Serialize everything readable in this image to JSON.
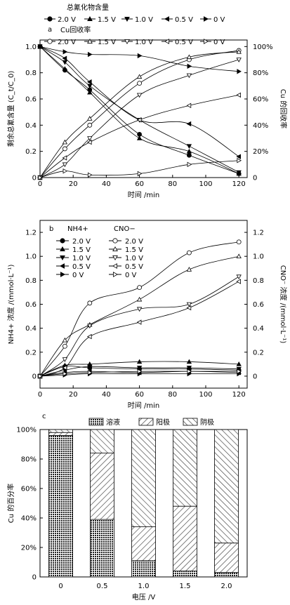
{
  "chart_data": [
    {
      "type": "line",
      "panel_label": "a",
      "legend_title_1": "总氰化物含量",
      "legend_title_2": "Cu回收率",
      "xlabel": "时间 /min",
      "ylabel": "剩余总氰含量 (C_t/C_0)",
      "ylabel_right": "Cu 的回收率",
      "xlim": [
        0,
        125
      ],
      "ylim": [
        0,
        1.05
      ],
      "xticks": [
        "0",
        "20",
        "40",
        "60",
        "80",
        "100",
        "120"
      ],
      "yticks": [
        "0",
        "0.2",
        "0.4",
        "0.6",
        "0.8",
        "1.0"
      ],
      "yticks_right": [
        "0",
        "20%",
        "40%",
        "60%",
        "80%",
        "100%"
      ],
      "series": [
        {
          "name": "2.0 V",
          "group": "cyanide",
          "marker": "circle-filled",
          "x": [
            0,
            15,
            30,
            60,
            90,
            120
          ],
          "y": [
            1.0,
            0.82,
            0.67,
            0.33,
            0.17,
            0.03
          ]
        },
        {
          "name": "1.5 V",
          "group": "cyanide",
          "marker": "tri-up-filled",
          "x": [
            0,
            15,
            30,
            60,
            90,
            120
          ],
          "y": [
            1.0,
            0.83,
            0.65,
            0.3,
            0.2,
            0.03
          ]
        },
        {
          "name": "1.0 V",
          "group": "cyanide",
          "marker": "tri-down-filled",
          "x": [
            0,
            15,
            30,
            60,
            90,
            120
          ],
          "y": [
            1.0,
            0.88,
            0.7,
            0.44,
            0.24,
            0.04
          ]
        },
        {
          "name": "0.5 V",
          "group": "cyanide",
          "marker": "tri-left-filled",
          "x": [
            0,
            15,
            30,
            60,
            90,
            120
          ],
          "y": [
            1.0,
            0.91,
            0.73,
            0.44,
            0.41,
            0.16
          ]
        },
        {
          "name": "0 V",
          "group": "cyanide",
          "marker": "tri-right-filled",
          "x": [
            0,
            15,
            30,
            60,
            90,
            120
          ],
          "y": [
            1.0,
            0.96,
            0.94,
            0.93,
            0.85,
            0.81
          ]
        },
        {
          "name": "2.0 V",
          "group": "cu",
          "marker": "circle-open",
          "x": [
            0,
            15,
            30,
            60,
            90,
            120
          ],
          "y": [
            0,
            0.22,
            0.4,
            0.72,
            0.9,
            0.97
          ]
        },
        {
          "name": "1.5 V",
          "group": "cu",
          "marker": "tri-up-open",
          "x": [
            0,
            15,
            30,
            60,
            90,
            120
          ],
          "y": [
            0,
            0.27,
            0.45,
            0.77,
            0.92,
            0.96
          ]
        },
        {
          "name": "1.0 V",
          "group": "cu",
          "marker": "tri-down-open",
          "x": [
            0,
            15,
            30,
            60,
            90,
            120
          ],
          "y": [
            0,
            0.1,
            0.3,
            0.63,
            0.78,
            0.9
          ]
        },
        {
          "name": "0.5 V",
          "group": "cu",
          "marker": "tri-left-open",
          "x": [
            0,
            15,
            30,
            60,
            90,
            120
          ],
          "y": [
            0,
            0.15,
            0.27,
            0.44,
            0.55,
            0.63
          ]
        },
        {
          "name": "0 V",
          "group": "cu",
          "marker": "tri-right-open",
          "x": [
            0,
            15,
            30,
            60,
            90,
            120
          ],
          "y": [
            0,
            0.05,
            0.02,
            0.03,
            0.1,
            0.13
          ]
        }
      ]
    },
    {
      "type": "line",
      "panel_label": "b",
      "legend_title_1": "NH4+",
      "legend_title_2": "CNO−",
      "xlabel": "时间 /min",
      "ylabel": "NH4+ 浓度 /(mmol·L⁻¹)",
      "ylabel_right": "CNO⁻ 浓度 /(mmol·L⁻¹)",
      "xlim": [
        0,
        125
      ],
      "ylim": [
        -0.1,
        1.3
      ],
      "xticks": [
        "0",
        "20",
        "40",
        "60",
        "80",
        "100",
        "120"
      ],
      "yticks": [
        "0",
        "0.2",
        "0.4",
        "0.6",
        "0.8",
        "1.0",
        "1.2"
      ],
      "series": [
        {
          "name": "2.0 V",
          "group": "nh4",
          "marker": "circle-filled",
          "x": [
            0,
            15,
            30,
            60,
            90,
            120
          ],
          "y": [
            0,
            0.08,
            0.07,
            0.06,
            0.06,
            0.05
          ]
        },
        {
          "name": "1.5 V",
          "group": "nh4",
          "marker": "tri-up-filled",
          "x": [
            0,
            15,
            30,
            60,
            90,
            120
          ],
          "y": [
            0,
            0.09,
            0.1,
            0.12,
            0.12,
            0.1
          ]
        },
        {
          "name": "1.0 V",
          "group": "nh4",
          "marker": "tri-down-filled",
          "x": [
            0,
            15,
            30,
            60,
            90,
            120
          ],
          "y": [
            0,
            0.05,
            0.08,
            0.07,
            0.07,
            0.06
          ]
        },
        {
          "name": "0.5 V",
          "group": "nh4",
          "marker": "tri-left-filled",
          "x": [
            0,
            15,
            30,
            60,
            90,
            120
          ],
          "y": [
            0,
            0.03,
            0.04,
            0.03,
            0.04,
            0.03
          ]
        },
        {
          "name": "0 V",
          "group": "nh4",
          "marker": "tri-right-filled",
          "x": [
            0,
            15,
            30,
            60,
            90,
            120
          ],
          "y": [
            0,
            0.01,
            0.02,
            0.02,
            0.02,
            0.02
          ]
        },
        {
          "name": "2.0 V",
          "group": "cno",
          "marker": "circle-open",
          "x": [
            0,
            15,
            30,
            60,
            90,
            120
          ],
          "y": [
            0,
            0.25,
            0.61,
            0.74,
            1.03,
            1.12
          ]
        },
        {
          "name": "1.5 V",
          "group": "cno",
          "marker": "tri-up-open",
          "x": [
            0,
            15,
            30,
            60,
            90,
            120
          ],
          "y": [
            0,
            0.3,
            0.43,
            0.64,
            0.89,
            1.0
          ]
        },
        {
          "name": "1.0 V",
          "group": "cno",
          "marker": "tri-down-open",
          "x": [
            0,
            15,
            30,
            60,
            90,
            120
          ],
          "y": [
            0,
            0.14,
            0.42,
            0.56,
            0.6,
            0.83
          ]
        },
        {
          "name": "0.5 V",
          "group": "cno",
          "marker": "tri-left-open",
          "x": [
            0,
            15,
            30,
            60,
            90,
            120
          ],
          "y": [
            0,
            0.07,
            0.33,
            0.45,
            0.57,
            0.79
          ]
        },
        {
          "name": "0 V",
          "group": "cno",
          "marker": "tri-right-open",
          "x": [
            0,
            15,
            30,
            60,
            90,
            120
          ],
          "y": [
            0,
            0.02,
            0.03,
            0.04,
            0.04,
            0.04
          ]
        }
      ]
    },
    {
      "type": "bar",
      "stacked": true,
      "panel_label": "c",
      "xlabel": "电压 /V",
      "ylabel": "Cu 的百分率",
      "categories": [
        "0",
        "0.5",
        "1.0",
        "1.5",
        "2.0"
      ],
      "ylim": [
        0,
        100
      ],
      "yticks": [
        "0",
        "20%",
        "40%",
        "60%",
        "80%",
        "100%"
      ],
      "series": [
        {
          "name": "溶液",
          "pattern": "dense",
          "values": [
            96,
            39,
            11,
            4,
            3
          ]
        },
        {
          "name": "阳极",
          "pattern": "diag-right",
          "values": [
            2,
            45,
            23,
            44,
            20
          ]
        },
        {
          "name": "阴极",
          "pattern": "diag-left",
          "values": [
            2,
            16,
            66,
            52,
            77
          ]
        }
      ]
    }
  ]
}
